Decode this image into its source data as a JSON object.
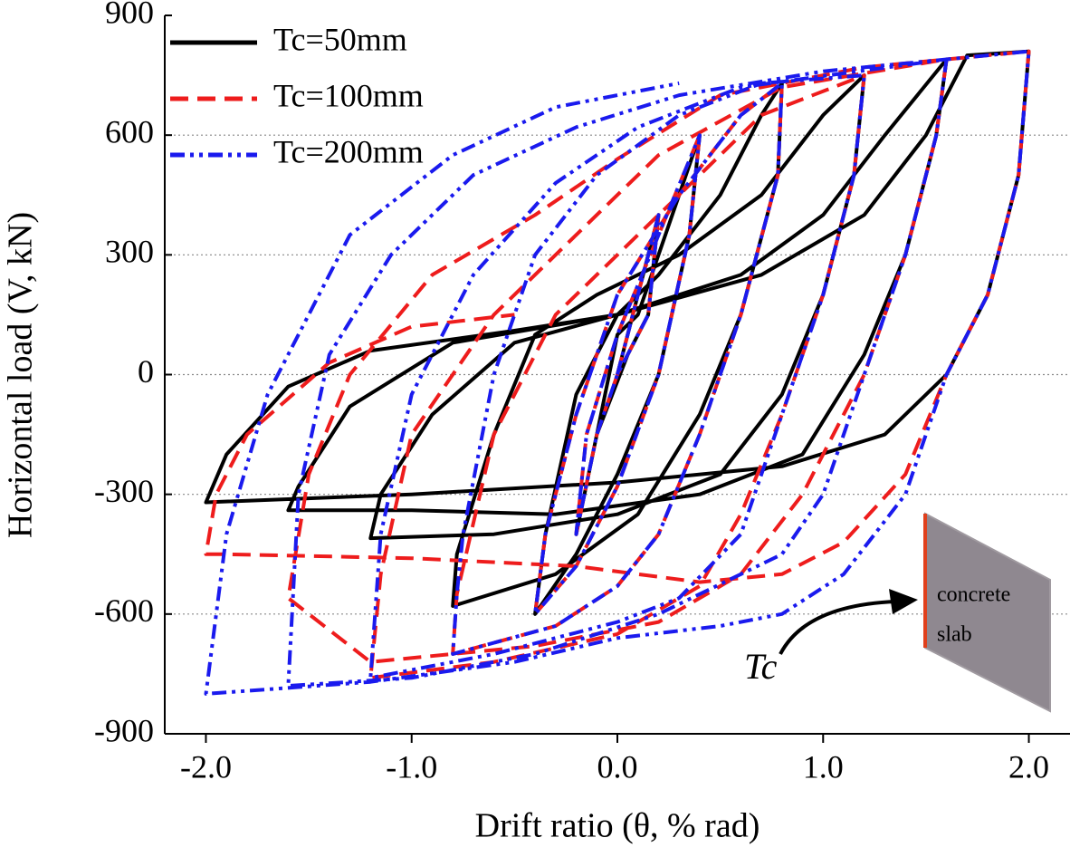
{
  "chart_data": {
    "type": "line",
    "x_label": "Drift ratio (θ, % rad)",
    "y_label": "Horizontal load (V, kN)",
    "annotation": "Tc",
    "inset_text": [
      "concrete",
      "slab"
    ],
    "xlim": [
      -2.2,
      2.2
    ],
    "ylim": [
      -900,
      900
    ],
    "xticks": [
      {
        "value": -2,
        "label": "-2.0"
      },
      {
        "value": -1,
        "label": "-1.0"
      },
      {
        "value": 0,
        "label": "0.0"
      },
      {
        "value": 1,
        "label": "1.0"
      },
      {
        "value": 2,
        "label": "2.0"
      }
    ],
    "yticks": [
      -900,
      -600,
      -300,
      0,
      300,
      600,
      900
    ],
    "grid": true,
    "legend": "upper left",
    "series": [
      {
        "name": "Tc=50mm",
        "color": "#000000",
        "style": "solid",
        "x": [
          0,
          0.1,
          0.2,
          0.15,
          0.05,
          -0.1,
          -0.2,
          -0.1,
          0,
          0.1,
          0.3,
          0.4,
          0.35,
          0.2,
          0,
          -0.2,
          -0.4,
          -0.35,
          -0.2,
          0,
          0.2,
          0.5,
          0.7,
          0.8,
          0.78,
          0.6,
          0.4,
          0.1,
          -0.3,
          -0.8,
          -0.78,
          -0.6,
          -0.4,
          -0.1,
          0.3,
          0.7,
          1.0,
          1.2,
          1.15,
          1.0,
          0.8,
          0.5,
          0,
          -0.6,
          -1.2,
          -1.15,
          -0.9,
          -0.5,
          0,
          0.6,
          1.0,
          1.3,
          1.6,
          1.55,
          1.4,
          1.2,
          0.9,
          0.4,
          -0.3,
          -1.0,
          -1.6,
          -1.55,
          -1.3,
          -0.8,
          0,
          0.7,
          1.2,
          1.5,
          1.7,
          2.0,
          1.95,
          1.8,
          1.6,
          1.3,
          0.8,
          0,
          -1.0,
          -2.0,
          -1.9,
          -1.6,
          -1.2,
          -0.5,
          0
        ],
        "values": [
          0,
          200,
          400,
          150,
          50,
          -150,
          -400,
          -150,
          100,
          150,
          450,
          600,
          350,
          0,
          -250,
          -450,
          -600,
          -400,
          -50,
          150,
          250,
          450,
          650,
          730,
          500,
          150,
          -100,
          -350,
          -500,
          -580,
          -450,
          -150,
          100,
          200,
          300,
          450,
          650,
          750,
          500,
          200,
          -50,
          -250,
          -350,
          -400,
          -410,
          -300,
          -100,
          80,
          150,
          250,
          400,
          600,
          790,
          600,
          300,
          50,
          -200,
          -300,
          -350,
          -340,
          -340,
          -280,
          -80,
          80,
          150,
          250,
          400,
          600,
          800,
          810,
          500,
          200,
          0,
          -150,
          -230,
          -270,
          -300,
          -320,
          -200,
          -30,
          60,
          110,
          150
        ]
      },
      {
        "name": "Tc=100mm",
        "color": "#ee1c1c",
        "style": "dashed",
        "x": [
          0,
          0.1,
          0.2,
          0.15,
          0,
          -0.1,
          -0.2,
          -0.15,
          0,
          0.2,
          0.4,
          0.35,
          0.2,
          0,
          -0.2,
          -0.4,
          -0.35,
          -0.2,
          0,
          0.3,
          0.6,
          0.8,
          0.78,
          0.6,
          0.4,
          0.2,
          0,
          -0.3,
          -0.8,
          -0.78,
          -0.6,
          -0.3,
          0,
          0.3,
          0.7,
          1.2,
          1.15,
          1.0,
          0.8,
          0.6,
          0.4,
          0,
          -0.6,
          -1.2,
          -1.15,
          -1.0,
          -0.6,
          -0.2,
          0.2,
          0.8,
          1.6,
          1.55,
          1.4,
          1.2,
          0.9,
          0.6,
          0.2,
          -0.4,
          -0.8,
          -1.2,
          -1.6,
          -1.5,
          -1.3,
          -0.9,
          -0.4,
          0,
          0.5,
          1.2,
          2.0,
          1.95,
          1.8,
          1.6,
          1.4,
          1.1,
          0.8,
          0.4,
          -0.2,
          -1.0,
          -1.9,
          -2.0,
          -1.95,
          -1.8,
          -1.4,
          -1.0,
          -0.5
        ],
        "values": [
          0,
          200,
          400,
          150,
          0,
          -150,
          -400,
          -150,
          100,
          350,
          600,
          350,
          0,
          -280,
          -480,
          -600,
          -400,
          -100,
          200,
          450,
          650,
          730,
          500,
          150,
          -150,
          -400,
          -530,
          -630,
          -700,
          -550,
          -150,
          150,
          300,
          450,
          650,
          750,
          500,
          200,
          -100,
          -350,
          -530,
          -650,
          -720,
          -760,
          -500,
          -150,
          150,
          350,
          550,
          720,
          790,
          600,
          300,
          0,
          -300,
          -500,
          -620,
          -680,
          -700,
          -720,
          -560,
          -250,
          0,
          250,
          400,
          540,
          700,
          770,
          810,
          500,
          200,
          0,
          -250,
          -420,
          -500,
          -520,
          -480,
          -460,
          -450,
          -450,
          -300,
          -150,
          30,
          120,
          150
        ]
      },
      {
        "name": "Tc=200mm",
        "color": "#1a1aee",
        "style": "dashdotdot",
        "x": [
          0,
          0.1,
          0.2,
          0.15,
          0,
          -0.1,
          -0.2,
          -0.15,
          0,
          0.2,
          0.4,
          0.35,
          0.2,
          0,
          -0.2,
          -0.4,
          -0.35,
          -0.2,
          0,
          0.3,
          0.6,
          0.8,
          0.78,
          0.6,
          0.4,
          0.2,
          0,
          -0.3,
          -0.8,
          -0.78,
          -0.75,
          -0.6,
          -0.4,
          -0.1,
          0.3,
          0.7,
          1.2,
          1.15,
          1.0,
          0.8,
          0.6,
          0.3,
          0,
          -0.6,
          -1.2,
          -1.15,
          -1.0,
          -0.7,
          -0.3,
          0.1,
          0.6,
          1.6,
          1.55,
          1.4,
          1.2,
          1.0,
          0.8,
          0.6,
          0.2,
          -0.4,
          -1.0,
          -1.6,
          -1.55,
          -1.4,
          -1.1,
          -0.7,
          -0.2,
          0.3,
          1.0,
          2.0,
          1.95,
          1.8,
          1.6,
          1.4,
          1.1,
          0.8,
          0.5,
          0,
          -0.5,
          -1.2,
          -2.0,
          -1.9,
          -1.7,
          -1.3,
          -0.8,
          -0.3,
          0.3
        ],
        "values": [
          0,
          200,
          400,
          150,
          0,
          -150,
          -400,
          -150,
          100,
          350,
          600,
          350,
          0,
          -280,
          -480,
          -600,
          -400,
          -100,
          200,
          450,
          650,
          730,
          500,
          150,
          -150,
          -400,
          -530,
          -630,
          -700,
          -550,
          -400,
          0,
          300,
          500,
          650,
          730,
          750,
          500,
          200,
          -100,
          -400,
          -560,
          -620,
          -700,
          -760,
          -400,
          -50,
          250,
          480,
          620,
          720,
          790,
          600,
          300,
          0,
          -300,
          -450,
          -500,
          -600,
          -700,
          -760,
          -780,
          -300,
          50,
          300,
          500,
          620,
          700,
          760,
          810,
          500,
          200,
          0,
          -300,
          -500,
          -600,
          -630,
          -660,
          -720,
          -770,
          -800,
          -400,
          -50,
          350,
          550,
          670,
          730
        ]
      }
    ]
  }
}
